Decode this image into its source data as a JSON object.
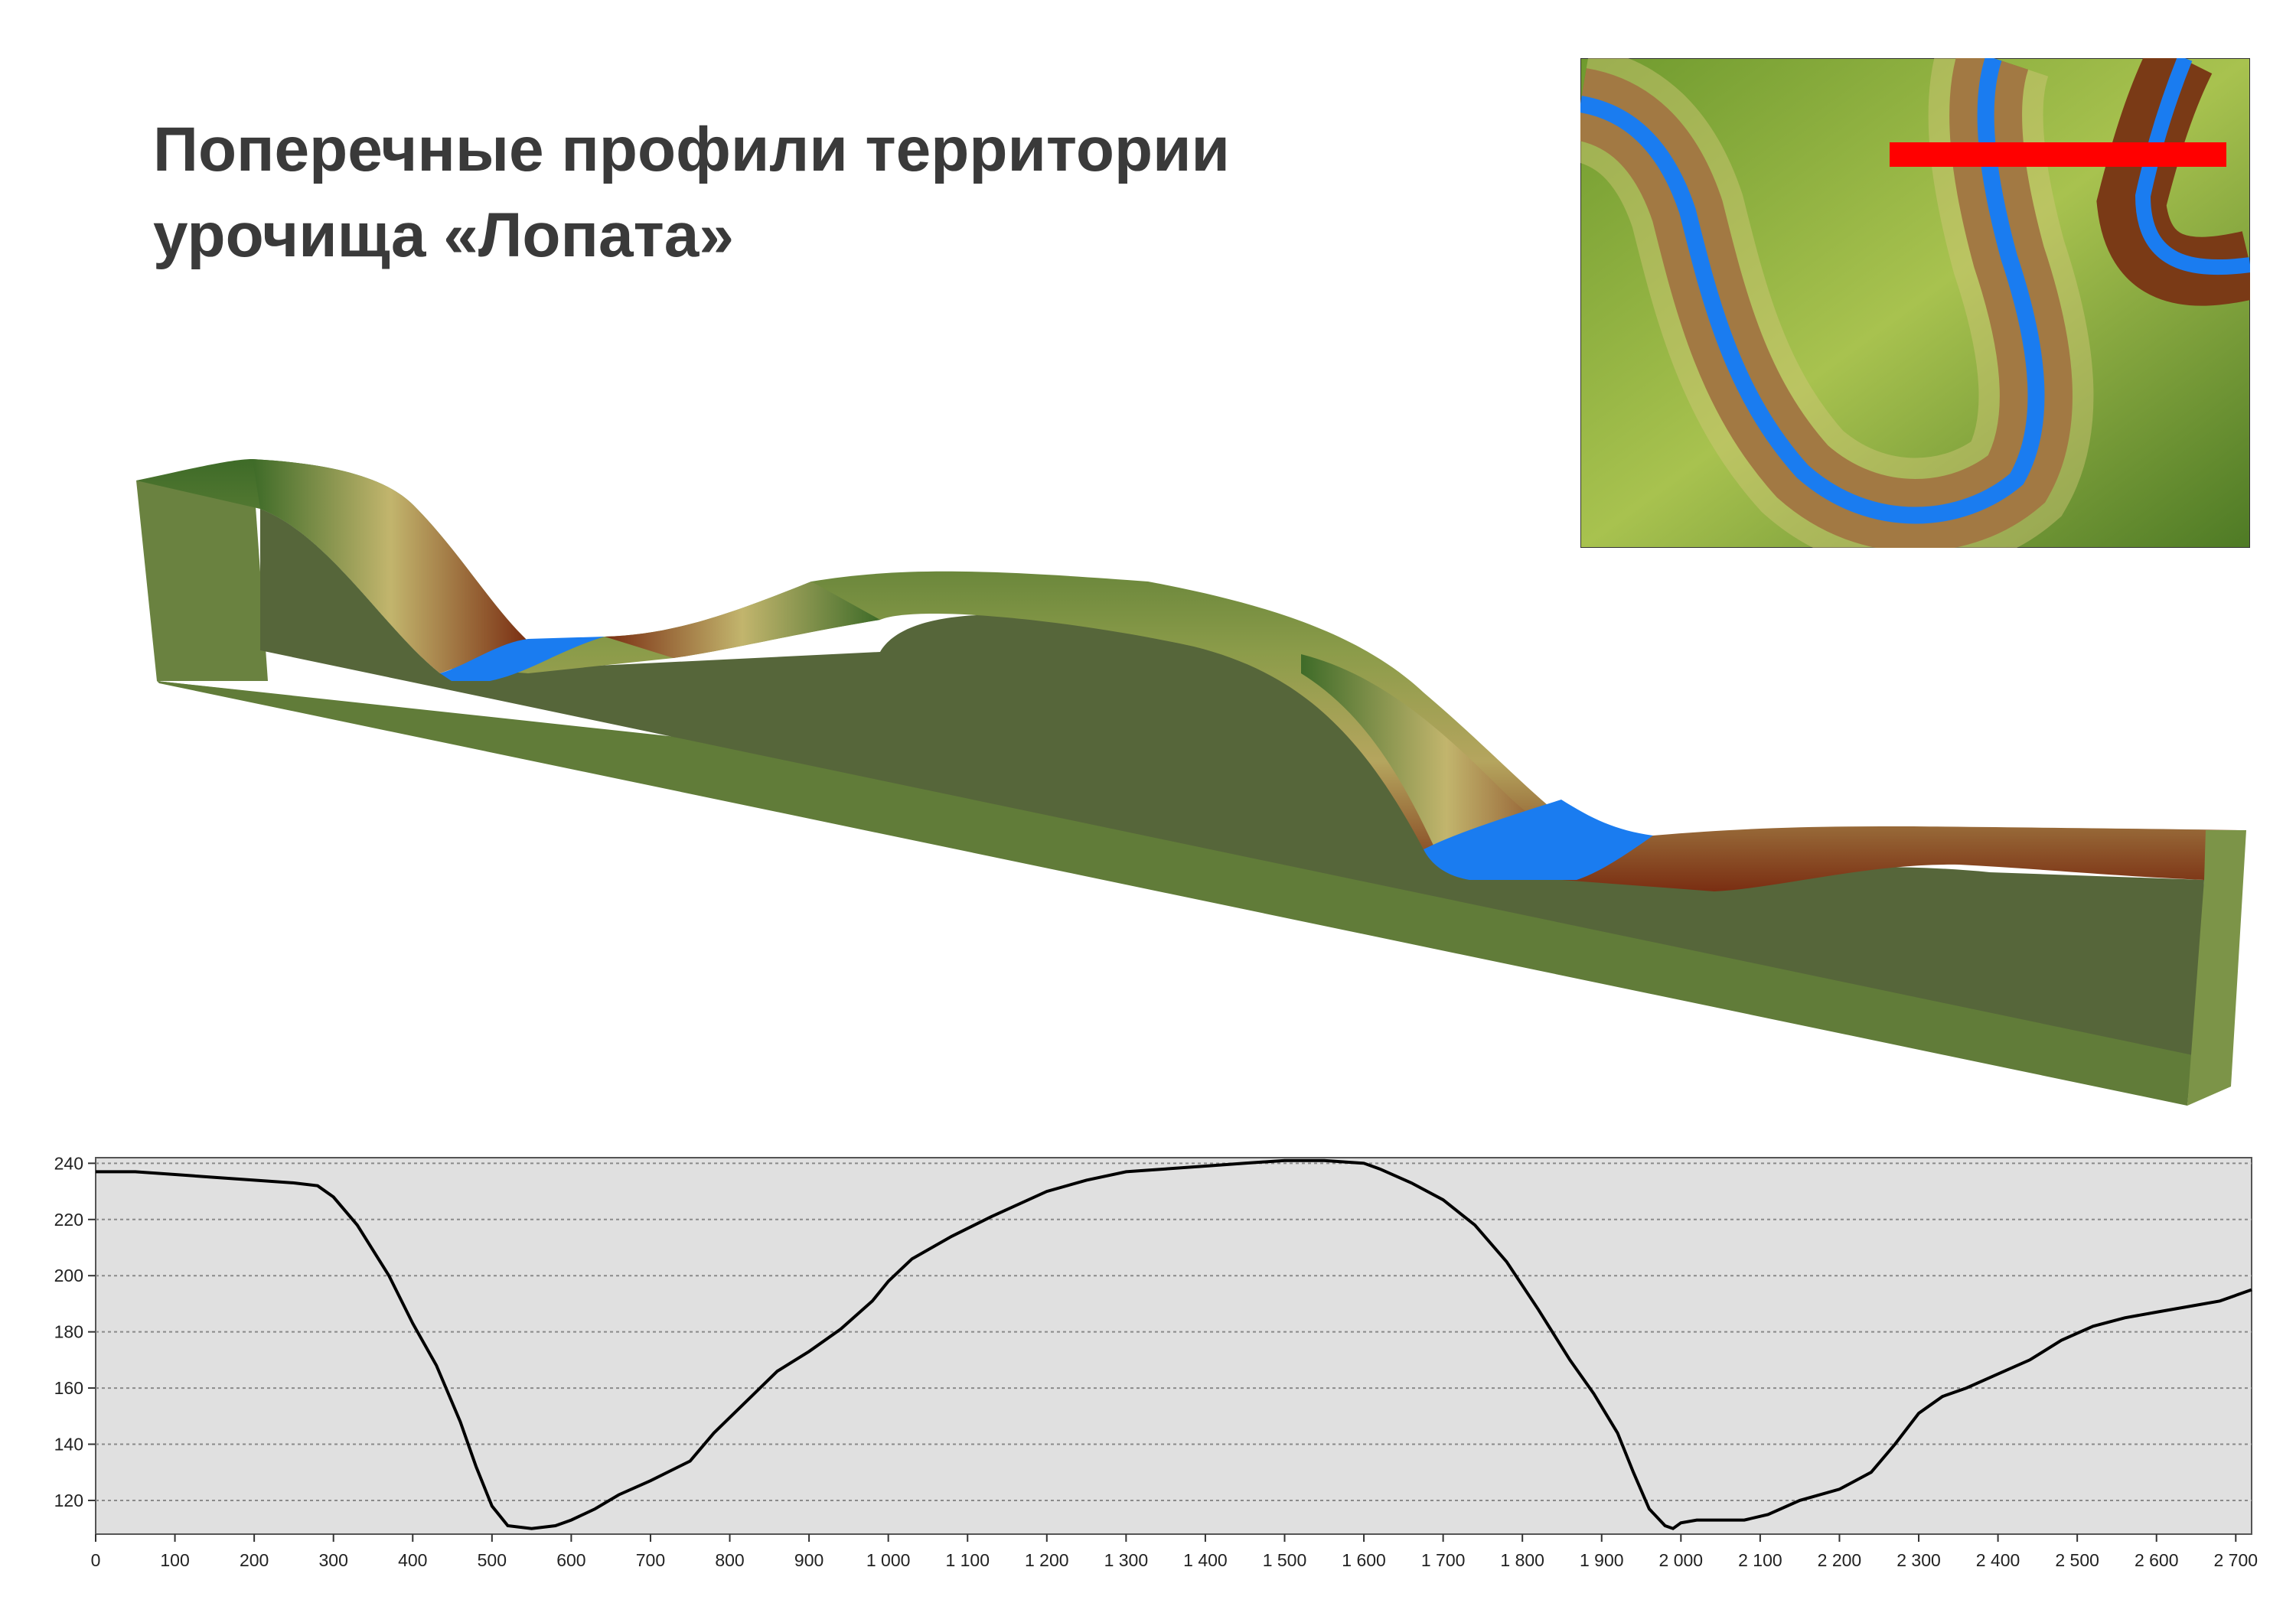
{
  "title": {
    "line1": "Поперечные профили территории",
    "line2": "урочища «Лопата»"
  },
  "colors": {
    "water": "#1a7cf0",
    "profile_line": "#000000",
    "plot_background": "#e0e0e0",
    "section_line": "#ff0000",
    "terrain_high": "#3f6e2a",
    "terrain_mid": "#c9c37a",
    "terrain_low": "#7a2e12"
  },
  "chart_data": {
    "type": "line",
    "xlim": [
      0,
      2720
    ],
    "ylim": [
      108,
      242
    ],
    "grid": true,
    "x_ticks": [
      0,
      100,
      200,
      300,
      400,
      500,
      600,
      700,
      800,
      900,
      1000,
      1100,
      1200,
      1300,
      1400,
      1500,
      1600,
      1700,
      1800,
      1900,
      2000,
      2100,
      2200,
      2300,
      2400,
      2500,
      2600,
      2700
    ],
    "x_tick_labels": [
      "0",
      "100",
      "200",
      "300",
      "400",
      "500",
      "600",
      "700",
      "800",
      "900",
      "1 000",
      "1 100",
      "1 200",
      "1 300",
      "1 400",
      "1 500",
      "1 600",
      "1 700",
      "1 800",
      "1 900",
      "2 000",
      "2 100",
      "2 200",
      "2 300",
      "2 400",
      "2 500",
      "2 600",
      "2 700"
    ],
    "y_ticks": [
      120,
      140,
      160,
      180,
      200,
      220,
      240
    ],
    "y_tick_labels": [
      "120",
      "140",
      "160",
      "180",
      "200",
      "220",
      "240"
    ],
    "series": [
      {
        "x": [
          0,
          50,
          100,
          150,
          200,
          250,
          280,
          300,
          330,
          370,
          400,
          430,
          460,
          480,
          500,
          520,
          550,
          580,
          600,
          630,
          660,
          700,
          750,
          780,
          820,
          860,
          900,
          940,
          980,
          1000,
          1030,
          1080,
          1130,
          1200,
          1250,
          1300,
          1350,
          1400,
          1450,
          1500,
          1550,
          1600,
          1620,
          1660,
          1700,
          1740,
          1780,
          1820,
          1860,
          1890,
          1920,
          1940,
          1960,
          1980,
          1990,
          2000,
          2020,
          2050,
          2080,
          2110,
          2150,
          2200,
          2240,
          2270,
          2300,
          2330,
          2360,
          2400,
          2440,
          2480,
          2520,
          2560,
          2600,
          2640,
          2680,
          2720
        ],
        "y": [
          237,
          237,
          236,
          235,
          234,
          233,
          232,
          228,
          218,
          200,
          183,
          168,
          148,
          132,
          118,
          111,
          110,
          111,
          113,
          117,
          122,
          127,
          134,
          144,
          155,
          166,
          173,
          181,
          191,
          198,
          206,
          214,
          221,
          230,
          234,
          237,
          238,
          239,
          240,
          241,
          241,
          240,
          238,
          233,
          227,
          218,
          205,
          188,
          170,
          158,
          144,
          130,
          117,
          111,
          110,
          112,
          113,
          113,
          113,
          115,
          120,
          124,
          130,
          140,
          151,
          157,
          160,
          165,
          170,
          177,
          182,
          185,
          187,
          189,
          191,
          195
        ]
      }
    ]
  }
}
